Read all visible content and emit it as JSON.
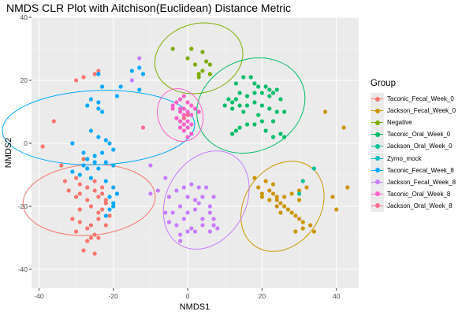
{
  "chart_data": {
    "type": "scatter",
    "title": "NMDS CLR Plot with Aitchison(Euclidean) Distance Metric",
    "xlabel": "NMDS1",
    "ylabel": "NMDS2",
    "xlim": [
      -42,
      46
    ],
    "ylim": [
      -46,
      40
    ],
    "x_ticks": [
      -40,
      -20,
      0,
      20,
      40
    ],
    "y_ticks": [
      -40,
      -20,
      0,
      20,
      40
    ],
    "grid": true,
    "legend_title": "Group",
    "legend_position": "right",
    "ellipses": true,
    "series": [
      {
        "name": "Taconic_Fecal_Week_0",
        "color": "#F8766D",
        "ellipse": {
          "cx": -26.5,
          "cy": -18,
          "rx": 9.5,
          "ry": 42,
          "angle": -94
        },
        "points": [
          [
            -39,
            -1
          ],
          [
            -36,
            7
          ],
          [
            -34,
            -7
          ],
          [
            -30,
            -11
          ],
          [
            -28,
            -5
          ],
          [
            -33,
            -12
          ],
          [
            -29,
            -13
          ],
          [
            -27,
            -14
          ],
          [
            -32,
            -15
          ],
          [
            -30,
            -17
          ],
          [
            -29,
            -16
          ],
          [
            -25,
            -12
          ],
          [
            -23,
            -14
          ],
          [
            -25,
            -15
          ],
          [
            -27,
            -18
          ],
          [
            -24,
            -17
          ],
          [
            -23,
            -16
          ],
          [
            -26,
            -20
          ],
          [
            -29,
            -21
          ],
          [
            -31,
            -24
          ],
          [
            -29,
            -25
          ],
          [
            -30,
            -28
          ],
          [
            -27,
            -27
          ],
          [
            -26,
            -26
          ],
          [
            -22,
            -18
          ],
          [
            -23,
            -21
          ],
          [
            -24,
            -22
          ],
          [
            -21,
            -23
          ],
          [
            -22,
            -26
          ],
          [
            -24,
            -24
          ],
          [
            -25,
            -29
          ],
          [
            -26,
            -30
          ],
          [
            -27,
            -31
          ],
          [
            -24,
            -30
          ],
          [
            -28,
            -34
          ],
          [
            -25,
            -35
          ],
          [
            -29,
            -21
          ],
          [
            -25,
            22
          ],
          [
            -24,
            23
          ],
          [
            -28,
            21
          ],
          [
            -30,
            20
          ],
          [
            -22,
            -19
          ]
        ]
      },
      {
        "name": "Jackson_Fecal_Week_0",
        "color": "#CD9600",
        "ellipse": {
          "cx": 25.5,
          "cy": -20,
          "rx": 13,
          "ry": 24,
          "angle": -55
        },
        "points": [
          [
            37,
            10
          ],
          [
            42,
            5
          ],
          [
            43,
            -14
          ],
          [
            40,
            -21
          ],
          [
            39,
            -17
          ],
          [
            32,
            -14
          ],
          [
            30,
            -15
          ],
          [
            28,
            -16
          ],
          [
            26,
            -17
          ],
          [
            24,
            -17
          ],
          [
            22,
            -18
          ],
          [
            20,
            -17
          ],
          [
            18,
            -11
          ],
          [
            19,
            -14
          ],
          [
            21,
            -12
          ],
          [
            22,
            -15
          ],
          [
            23,
            -16
          ],
          [
            24,
            -18
          ],
          [
            25,
            -19
          ],
          [
            26,
            -20
          ],
          [
            27,
            -21
          ],
          [
            28,
            -22
          ],
          [
            29,
            -23
          ],
          [
            30,
            -24
          ],
          [
            31,
            -25
          ],
          [
            33,
            -26
          ],
          [
            34,
            -28
          ],
          [
            31,
            -27
          ],
          [
            29,
            -28
          ],
          [
            25,
            -22
          ],
          [
            24,
            -20
          ],
          [
            20,
            -16
          ],
          [
            23,
            -13
          ],
          [
            30,
            -18
          ]
        ]
      },
      {
        "name": "Negative",
        "color": "#7CAE00",
        "ellipse": {
          "cx": 3,
          "cy": 27,
          "rx": 12,
          "ry": 22,
          "angle": -15
        },
        "points": [
          [
            -4,
            30
          ],
          [
            1,
            30
          ],
          [
            0,
            27
          ],
          [
            3,
            22
          ],
          [
            4,
            29
          ],
          [
            5,
            26
          ],
          [
            4,
            23
          ],
          [
            2,
            25
          ],
          [
            6,
            25
          ],
          [
            6,
            22
          ],
          [
            3,
            21
          ]
        ]
      },
      {
        "name": "Taconic_Oral_Week_0",
        "color": "#00BE67",
        "ellipse": {
          "cx": 17,
          "cy": 12,
          "rx": 15,
          "ry": 29,
          "angle": -25
        },
        "points": [
          [
            13,
            19
          ],
          [
            15,
            21
          ],
          [
            17,
            21
          ],
          [
            18,
            19
          ],
          [
            19,
            18
          ],
          [
            21,
            18
          ],
          [
            22,
            17
          ],
          [
            23,
            16
          ],
          [
            24,
            17
          ],
          [
            25,
            14
          ],
          [
            22,
            15
          ],
          [
            20,
            16
          ],
          [
            18,
            16
          ],
          [
            16,
            15
          ],
          [
            14,
            16
          ],
          [
            13,
            14
          ],
          [
            12,
            13
          ],
          [
            11,
            14
          ],
          [
            10,
            12
          ],
          [
            12,
            11
          ],
          [
            14,
            12
          ],
          [
            16,
            12
          ],
          [
            18,
            13
          ],
          [
            20,
            12
          ],
          [
            22,
            11
          ],
          [
            24,
            10
          ],
          [
            26,
            10
          ],
          [
            23,
            7
          ],
          [
            20,
            7
          ],
          [
            18,
            6
          ],
          [
            16,
            6
          ],
          [
            14,
            5
          ],
          [
            13,
            4
          ],
          [
            12,
            3
          ],
          [
            25,
            3
          ],
          [
            26,
            2
          ],
          [
            15,
            10
          ],
          [
            19,
            9
          ],
          [
            21,
            4
          ],
          [
            23,
            2
          ]
        ]
      },
      {
        "name": "Jackson_Oral_Week_0",
        "color": "#00C19A",
        "ellipse": null,
        "points": [
          [
            34,
            -8
          ],
          [
            31,
            -12
          ],
          [
            30,
            -16
          ]
        ]
      },
      {
        "name": "Zymo_mock",
        "color": "#00BFC4",
        "ellipse": null,
        "points": []
      },
      {
        "name": "Taconic_Fecal_Week_8",
        "color": "#00A9FF",
        "ellipse": {
          "cx": -24,
          "cy": 5,
          "rx": 10,
          "ry": 61,
          "angle": -92
        },
        "points": [
          [
            -13,
            24
          ],
          [
            -15,
            23
          ],
          [
            -12,
            22
          ],
          [
            -24,
            22
          ],
          [
            -23,
            18
          ],
          [
            -18,
            18
          ],
          [
            -19,
            15
          ],
          [
            -26,
            14
          ],
          [
            -24,
            13
          ],
          [
            -24,
            11
          ],
          [
            -27,
            12
          ],
          [
            -23,
            10
          ],
          [
            -26,
            4
          ],
          [
            -24,
            2
          ],
          [
            -22,
            1
          ],
          [
            -21,
            0
          ],
          [
            -20,
            -2
          ],
          [
            -23,
            -3
          ],
          [
            -25,
            -4
          ],
          [
            -27,
            -5
          ],
          [
            -22,
            -6
          ],
          [
            -20,
            -7
          ],
          [
            -24,
            -8
          ],
          [
            -28,
            -7
          ],
          [
            -29,
            -10
          ],
          [
            -31,
            -9
          ],
          [
            -26,
            -11
          ],
          [
            -22,
            -12
          ],
          [
            -20,
            -14
          ],
          [
            -21,
            -17
          ],
          [
            -20,
            -19
          ],
          [
            -20,
            -20
          ],
          [
            -21,
            -21
          ],
          [
            -22,
            -23
          ],
          [
            -19,
            -16
          ],
          [
            -27,
            -8
          ],
          [
            -25,
            -6
          ],
          [
            -28,
            -3
          ],
          [
            -31,
            0
          ],
          [
            -13,
            17
          ]
        ]
      },
      {
        "name": "Jackson_Fecal_Week_8",
        "color": "#C77CFF",
        "ellipse": {
          "cx": 5,
          "cy": -18,
          "rx": 14,
          "ry": 25,
          "angle": -60
        },
        "points": [
          [
            -13,
            27
          ],
          [
            -15,
            20
          ],
          [
            -10,
            -7
          ],
          [
            -6,
            -11
          ],
          [
            -3,
            -15
          ],
          [
            -1,
            -14
          ],
          [
            1,
            -13
          ],
          [
            3,
            -14
          ],
          [
            5,
            -14
          ],
          [
            4,
            -17
          ],
          [
            2,
            -18
          ],
          [
            0,
            -17
          ],
          [
            -2,
            -20
          ],
          [
            -4,
            -22
          ],
          [
            -6,
            -22
          ],
          [
            -5,
            -25
          ],
          [
            -3,
            -26
          ],
          [
            -1,
            -24
          ],
          [
            0,
            -22
          ],
          [
            2,
            -21
          ],
          [
            4,
            -24
          ],
          [
            6,
            -22
          ],
          [
            7,
            -24
          ],
          [
            7,
            -26
          ],
          [
            8,
            -27
          ],
          [
            6,
            -28
          ],
          [
            4,
            -26
          ],
          [
            2,
            -28
          ],
          [
            0,
            -28
          ],
          [
            -2,
            -29
          ],
          [
            -2,
            -31
          ],
          [
            1,
            -27
          ],
          [
            6,
            -20
          ],
          [
            7,
            -17
          ],
          [
            3,
            -19
          ],
          [
            -5,
            -17
          ],
          [
            -8,
            -15
          ],
          [
            -10,
            -16
          ]
        ]
      },
      {
        "name": "Taconic_Oral_Week_8",
        "color": "#FF61CC",
        "ellipse": {
          "cx": -2,
          "cy": 9,
          "rx": 6,
          "ry": 17,
          "angle": -20
        },
        "points": [
          [
            -1,
            15
          ],
          [
            -2,
            14
          ],
          [
            0,
            13
          ],
          [
            -3,
            13
          ],
          [
            1,
            12
          ],
          [
            -1,
            11
          ],
          [
            -4,
            11
          ],
          [
            2,
            11
          ],
          [
            0,
            10
          ],
          [
            -2,
            10
          ],
          [
            -1,
            9
          ],
          [
            1,
            9
          ],
          [
            -3,
            8
          ],
          [
            0,
            7
          ],
          [
            -2,
            7
          ],
          [
            1,
            6
          ],
          [
            -1,
            6
          ],
          [
            0,
            5
          ],
          [
            -2,
            5
          ],
          [
            -1,
            4
          ],
          [
            1,
            3
          ],
          [
            0,
            2
          ],
          [
            -2,
            11
          ],
          [
            -4,
            12
          ],
          [
            3,
            10
          ]
        ]
      },
      {
        "name": "Jackson_Oral_Week_8",
        "color": "#FF6C91",
        "ellipse": null,
        "points": [
          [
            -12,
            5
          ],
          [
            -1,
            8
          ],
          [
            0,
            9
          ]
        ]
      }
    ]
  }
}
